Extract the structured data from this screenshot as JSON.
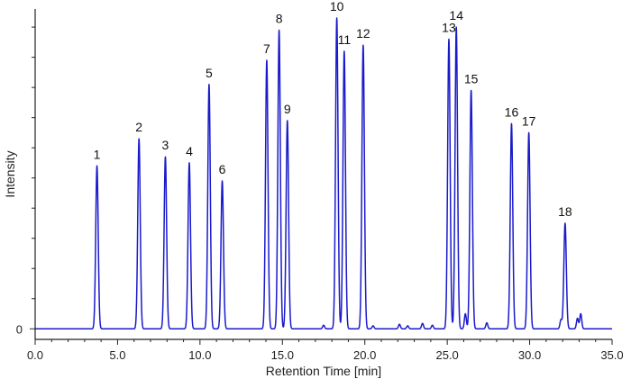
{
  "chart_data": {
    "type": "line",
    "xlabel": "Retention Time [min]",
    "ylabel": "Intensity",
    "xlim": [
      0,
      35
    ],
    "ylim": [
      -0.035,
      1.06
    ],
    "x_ticks": [
      "0.0",
      "5.0",
      "10.0",
      "15.0",
      "20.0",
      "25.0",
      "30.0",
      "35.0"
    ],
    "x_tick_values": [
      0,
      5,
      10,
      15,
      20,
      25,
      30,
      35
    ],
    "y_tick_labels": [
      {
        "value": 0,
        "label": "0"
      }
    ],
    "y_minor_ticks": [
      0.1,
      0.2,
      0.3,
      0.4,
      0.5,
      0.6,
      0.7,
      0.8,
      0.9,
      1.0
    ],
    "line_color": "#1a1acc",
    "peaks": [
      {
        "label": "1",
        "x": 3.75,
        "y": 0.54
      },
      {
        "label": "2",
        "x": 6.3,
        "y": 0.63
      },
      {
        "label": "3",
        "x": 7.9,
        "y": 0.57
      },
      {
        "label": "4",
        "x": 9.35,
        "y": 0.55
      },
      {
        "label": "5",
        "x": 10.55,
        "y": 0.81
      },
      {
        "label": "6",
        "x": 11.35,
        "y": 0.49
      },
      {
        "label": "7",
        "x": 14.05,
        "y": 0.89
      },
      {
        "label": "8",
        "x": 14.8,
        "y": 0.99
      },
      {
        "label": "9",
        "x": 15.3,
        "y": 0.69
      },
      {
        "label": "10",
        "x": 18.3,
        "y": 1.03
      },
      {
        "label": "11",
        "x": 18.75,
        "y": 0.92
      },
      {
        "label": "12",
        "x": 19.9,
        "y": 0.94
      },
      {
        "label": "13",
        "x": 25.1,
        "y": 0.96
      },
      {
        "label": "14",
        "x": 25.55,
        "y": 1.0
      },
      {
        "label": "15",
        "x": 26.45,
        "y": 0.79
      },
      {
        "label": "16",
        "x": 28.9,
        "y": 0.68
      },
      {
        "label": "17",
        "x": 29.95,
        "y": 0.65
      },
      {
        "label": "18",
        "x": 32.15,
        "y": 0.35
      }
    ]
  }
}
